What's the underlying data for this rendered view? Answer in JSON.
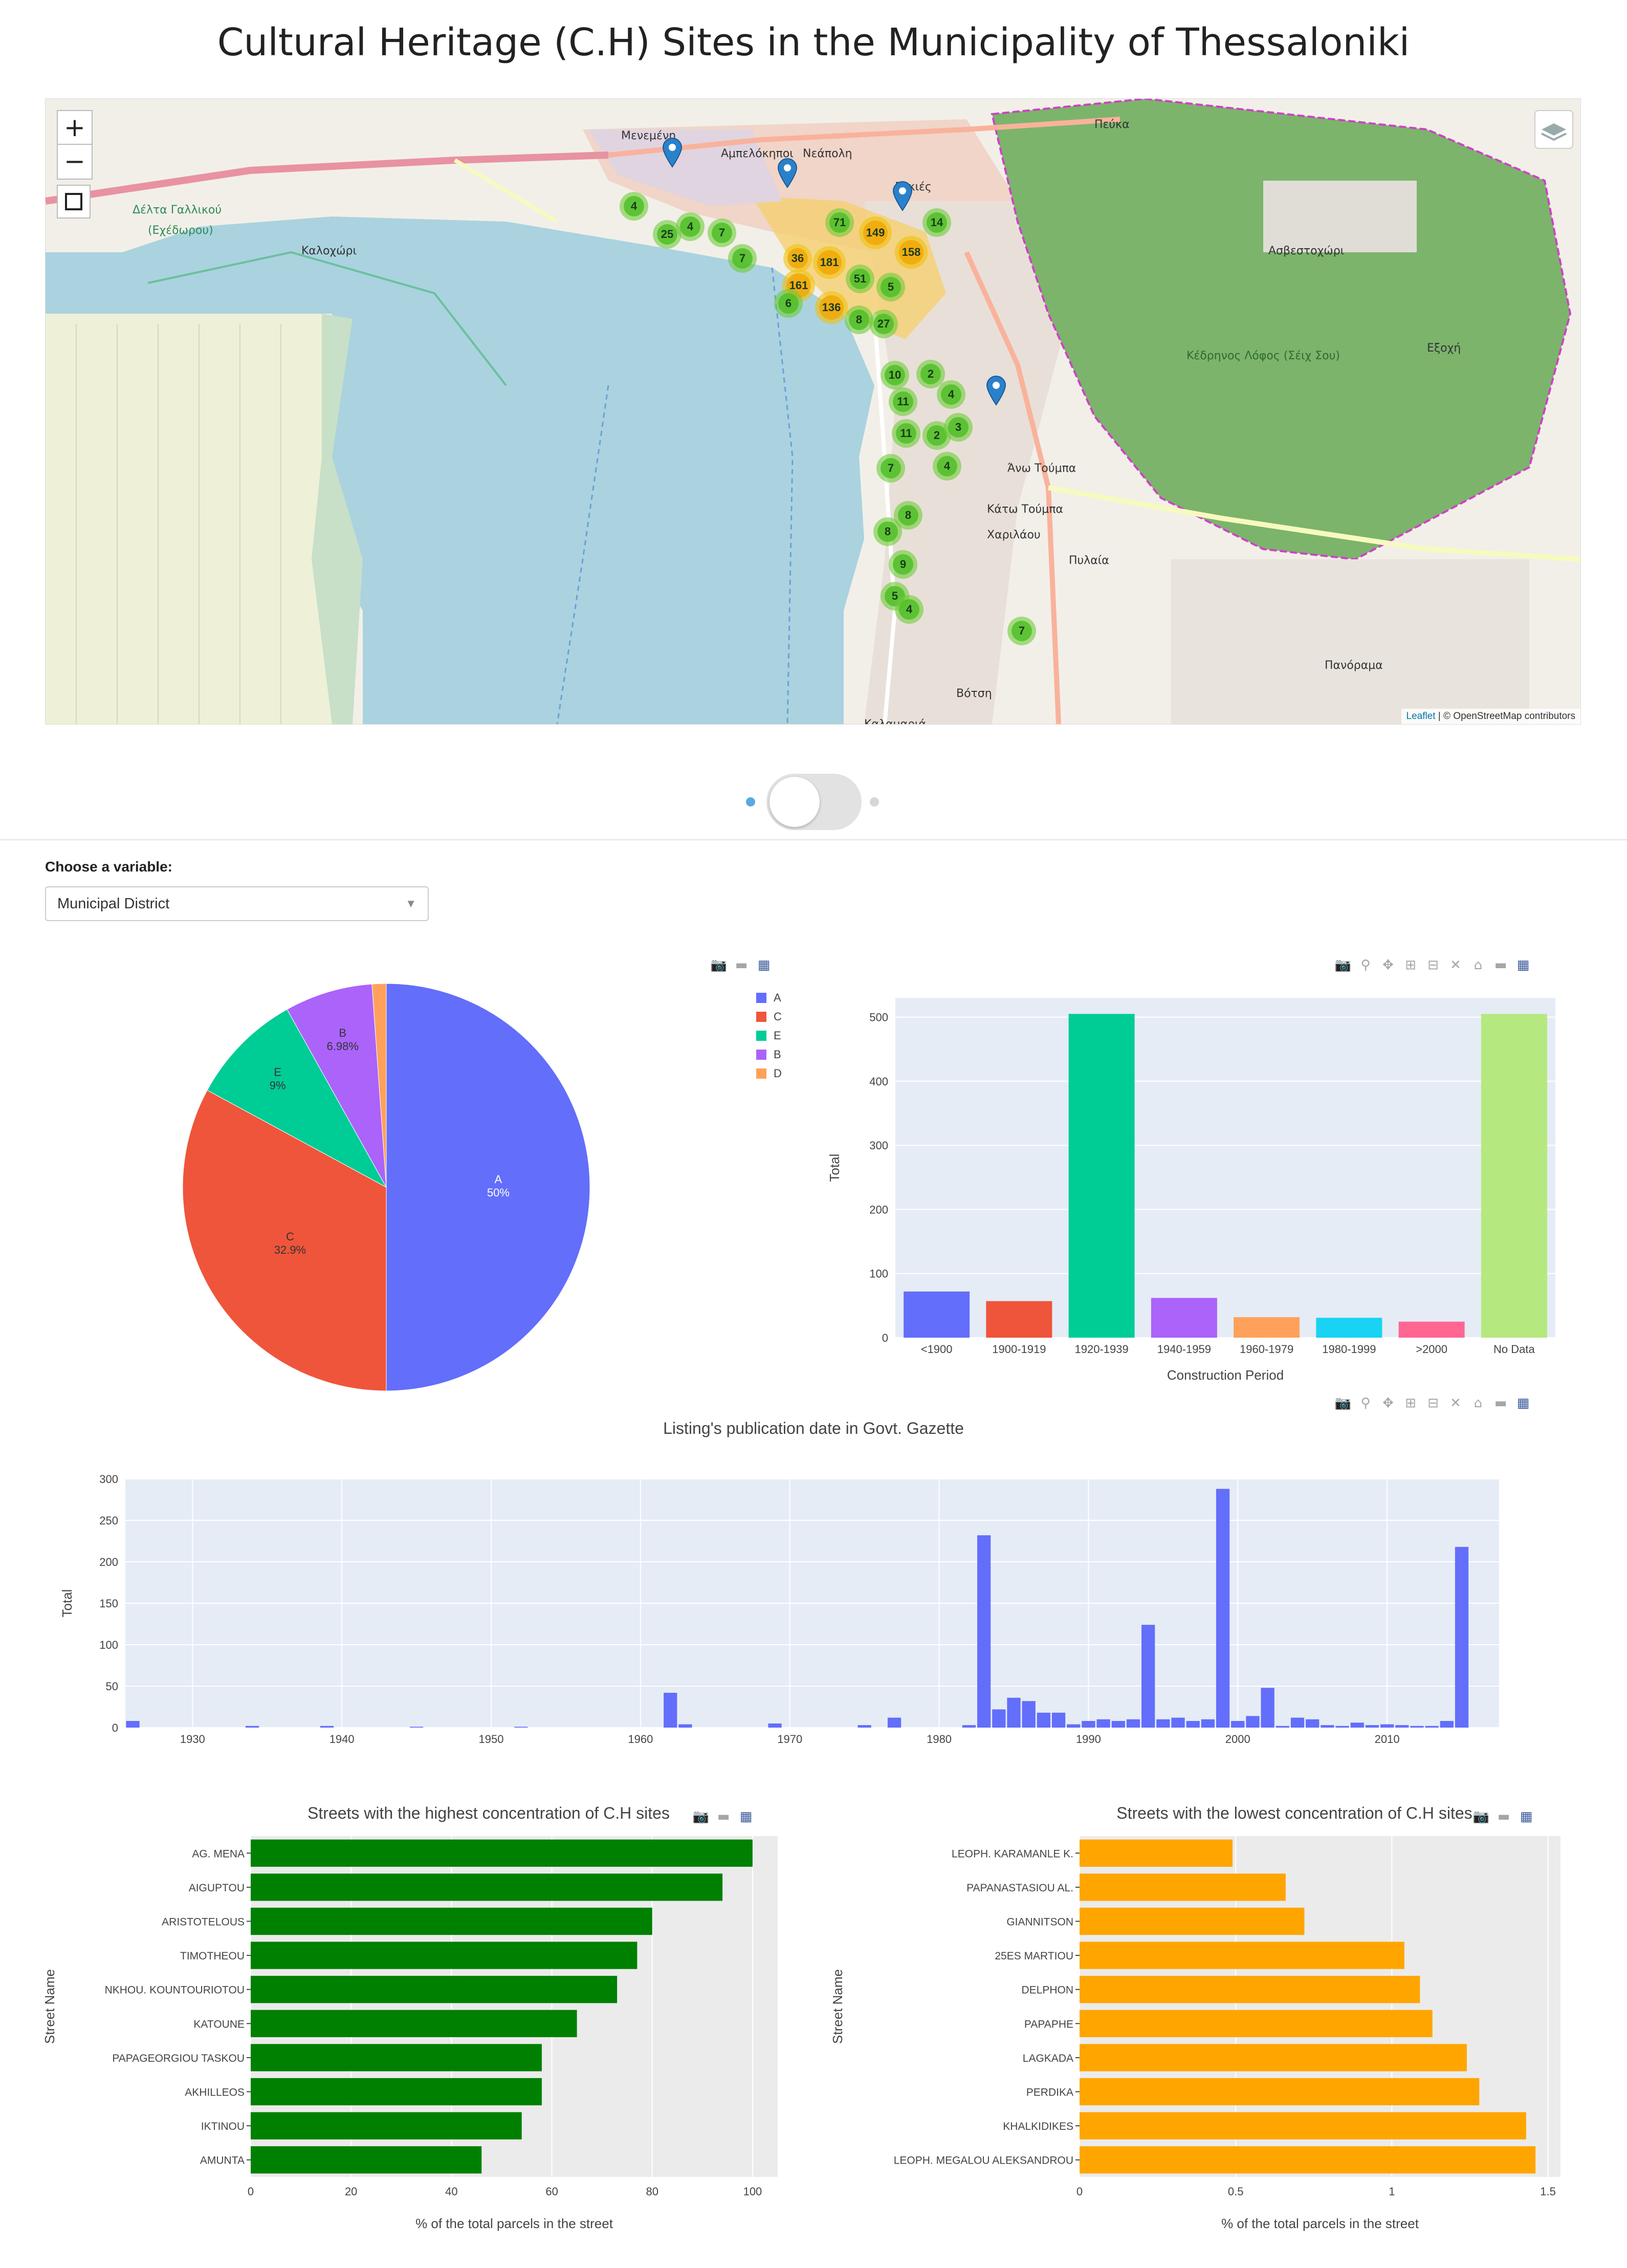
{
  "page": {
    "title": "Cultural Heritage (C.H) Sites in the Municipality of Thessaloniki"
  },
  "map": {
    "zoom_in": "+",
    "zoom_out": "−",
    "attribution_leaflet": "Leaflet",
    "attribution_rest": " | © OpenStreetMap contributors",
    "places": [
      {
        "name": "Δέλτα Γαλλικού",
        "color": "#2e8b57"
      },
      {
        "name": "(Εχέδωρου)",
        "color": "#2e8b57"
      },
      {
        "name": "Καλοχώρι",
        "color": "#333"
      },
      {
        "name": "Μενεμένη",
        "color": "#333"
      },
      {
        "name": "Αμπελόκηποι",
        "color": "#333"
      },
      {
        "name": "Νεάπολη",
        "color": "#333"
      },
      {
        "name": "Συκιές",
        "color": "#333"
      },
      {
        "name": "Πεύκα",
        "color": "#333"
      },
      {
        "name": "Ασβεστοχώρι",
        "color": "#333"
      },
      {
        "name": "Εξοχή",
        "color": "#333"
      },
      {
        "name": "Κέδρηνος Λόφος (Σέιχ Σου)",
        "color": "#2e6b2e"
      },
      {
        "name": "Άνω Τούμπα",
        "color": "#333"
      },
      {
        "name": "Κάτω Τούμπα",
        "color": "#333"
      },
      {
        "name": "Χαριλάου",
        "color": "#333"
      },
      {
        "name": "Πυλαία",
        "color": "#333"
      },
      {
        "name": "Πανόραμα",
        "color": "#333"
      },
      {
        "name": "Βότση",
        "color": "#333"
      },
      {
        "name": "Καλαμαριά",
        "color": "#333"
      }
    ],
    "clusters": [
      {
        "label": "4",
        "level": "g"
      },
      {
        "label": "25",
        "level": "g"
      },
      {
        "label": "4",
        "level": "g"
      },
      {
        "label": "7",
        "level": "g"
      },
      {
        "label": "7",
        "level": "g"
      },
      {
        "label": "71",
        "level": "g"
      },
      {
        "label": "149",
        "level": "y"
      },
      {
        "label": "14",
        "level": "g"
      },
      {
        "label": "36",
        "level": "y"
      },
      {
        "label": "181",
        "level": "y"
      },
      {
        "label": "158",
        "level": "y"
      },
      {
        "label": "161",
        "level": "y"
      },
      {
        "label": "51",
        "level": "g"
      },
      {
        "label": "5",
        "level": "g"
      },
      {
        "label": "6",
        "level": "g"
      },
      {
        "label": "136",
        "level": "y"
      },
      {
        "label": "8",
        "level": "g"
      },
      {
        "label": "27",
        "level": "g"
      },
      {
        "label": "10",
        "level": "g"
      },
      {
        "label": "2",
        "level": "g"
      },
      {
        "label": "11",
        "level": "g"
      },
      {
        "label": "4",
        "level": "g"
      },
      {
        "label": "11",
        "level": "g"
      },
      {
        "label": "2",
        "level": "g"
      },
      {
        "label": "3",
        "level": "g"
      },
      {
        "label": "7",
        "level": "g"
      },
      {
        "label": "4",
        "level": "g"
      },
      {
        "label": "8",
        "level": "g"
      },
      {
        "label": "8",
        "level": "g"
      },
      {
        "label": "9",
        "level": "g"
      },
      {
        "label": "5",
        "level": "g"
      },
      {
        "label": "4",
        "level": "g"
      },
      {
        "label": "7",
        "level": "g"
      }
    ]
  },
  "toggle": {
    "state": "off"
  },
  "controls": {
    "variable_label": "Choose a variable:",
    "variable_value": "Municipal District"
  },
  "chart_data": [
    {
      "type": "pie",
      "id": "district-pie",
      "labels": [
        "A",
        "C",
        "E",
        "B",
        "D"
      ],
      "values": [
        50,
        32.9,
        9,
        6.98,
        1.12
      ],
      "slice_text": [
        "A 50%",
        "C 32.9%",
        "E 9%",
        "B 6.98%",
        ""
      ],
      "colors": [
        "#636efa",
        "#ef553b",
        "#00cc96",
        "#ab63fa",
        "#ffa15a"
      ],
      "legend": "top-right"
    },
    {
      "type": "bar",
      "id": "period-bar",
      "categories": [
        "<1900",
        "1900-1919",
        "1920-1939",
        "1940-1959",
        "1960-1979",
        "1980-1999",
        ">2000",
        "No Data"
      ],
      "values": [
        72,
        57,
        505,
        62,
        32,
        31,
        25,
        505
      ],
      "colors": [
        "#636efa",
        "#ef553b",
        "#00cc96",
        "#ab63fa",
        "#ffa15a",
        "#19d3f3",
        "#ff6692",
        "#b6e880"
      ],
      "xlabel": "Construction Period",
      "ylabel": "Total",
      "ylim": [
        0,
        530
      ],
      "yticks": [
        0,
        100,
        200,
        300,
        400,
        500
      ]
    },
    {
      "type": "bar",
      "id": "gazette-bar",
      "title": "Listing's publication date in Govt. Gazette",
      "ylabel": "Total",
      "xlim": [
        1925.5,
        2017.5
      ],
      "xticks": [
        1930,
        1940,
        1950,
        1960,
        1970,
        1980,
        1990,
        2000,
        2010
      ],
      "ylim": [
        0,
        300
      ],
      "yticks": [
        0,
        50,
        100,
        150,
        200,
        250,
        300
      ],
      "color": "#636efa",
      "x": [
        1926,
        1934,
        1939,
        1945,
        1952,
        1962,
        1963,
        1969,
        1975,
        1977,
        1982,
        1983,
        1984,
        1985,
        1986,
        1987,
        1988,
        1989,
        1990,
        1991,
        1992,
        1993,
        1994,
        1995,
        1996,
        1997,
        1998,
        1999,
        2000,
        2001,
        2002,
        2003,
        2004,
        2005,
        2006,
        2007,
        2008,
        2009,
        2010,
        2011,
        2012,
        2013,
        2014,
        2015,
        2016
      ],
      "values": [
        8,
        2,
        2,
        1,
        1,
        42,
        4,
        5,
        3,
        12,
        3,
        232,
        22,
        36,
        32,
        18,
        18,
        4,
        8,
        10,
        8,
        10,
        124,
        10,
        12,
        8,
        10,
        288,
        8,
        14,
        48,
        2,
        12,
        10,
        3,
        2,
        6,
        3,
        4,
        3,
        2,
        2,
        8,
        218,
        0
      ]
    },
    {
      "type": "bar",
      "id": "highest-streets",
      "orientation": "horizontal",
      "title": "Streets with the highest concentration of C.H sites",
      "categories": [
        "AG. MENA",
        "AIGUPTOU",
        "ARISTOTELOUS",
        "TIMOTHEOU",
        "NKHOU. KOUNTOURIOTOU",
        "KATOUNE",
        "PAPAGEORGIOU TASKOU",
        "AKHILLEOS",
        "IKTINOU",
        "AMUNTA"
      ],
      "values": [
        100,
        94,
        80,
        77,
        73,
        65,
        58,
        58,
        54,
        46
      ],
      "color": "#008000",
      "xlabel": "% of the total parcels in the street",
      "ylabel": "Street Name",
      "xlim": [
        0,
        105
      ],
      "xticks": [
        0,
        20,
        40,
        60,
        80,
        100
      ]
    },
    {
      "type": "bar",
      "id": "lowest-streets",
      "orientation": "horizontal",
      "title": "Streets with the lowest concentration of C.H sites",
      "categories": [
        "LEOPH. KARAMANLE K.",
        "PAPANASTASIOU AL.",
        "GIANNITSON",
        "25ES MARTIOU",
        "DELPHON",
        "PAPAPHE",
        "LAGKADA",
        "PERDIKA",
        "KHALKIDIKES",
        "LEOPH. MEGALOU ALEKSANDROU"
      ],
      "values": [
        0.49,
        0.66,
        0.72,
        1.04,
        1.09,
        1.13,
        1.24,
        1.28,
        1.43,
        1.46
      ],
      "color": "#ffa500",
      "xlabel": "% of the total parcels in the street",
      "ylabel": "Street Name",
      "xlim": [
        0,
        1.54
      ],
      "xticks": [
        0,
        0.5,
        1,
        1.5
      ]
    }
  ]
}
